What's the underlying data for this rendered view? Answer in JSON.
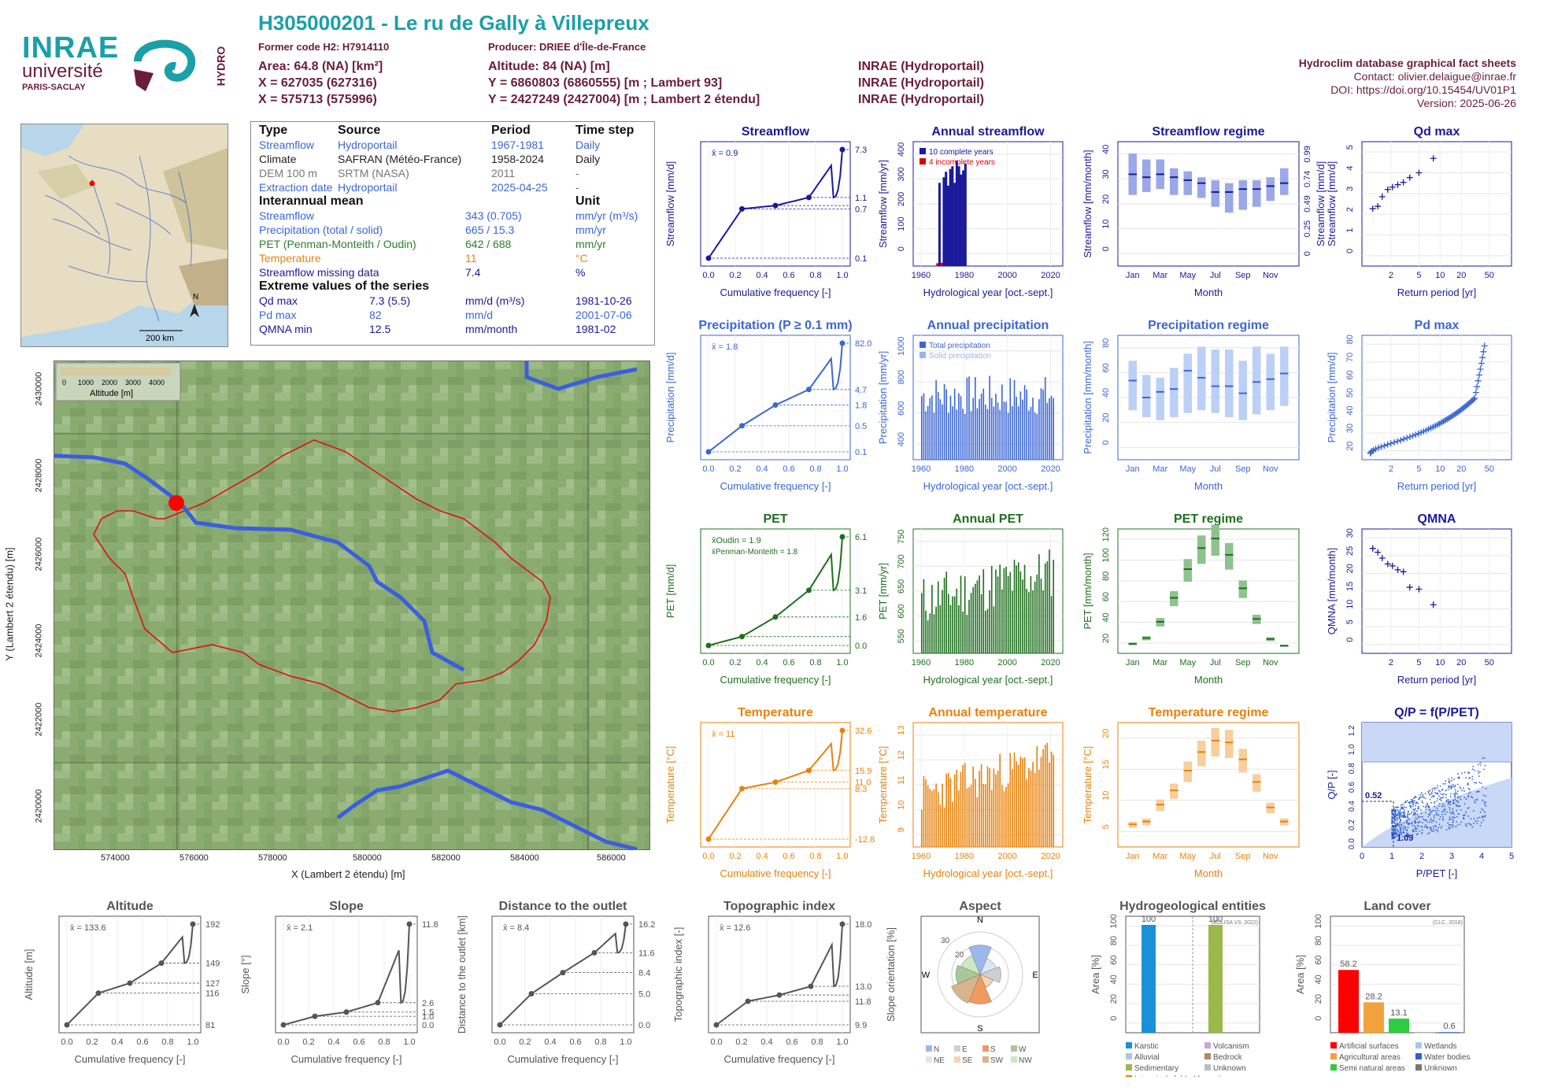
{
  "header": {
    "title": "H305000201 - Le ru de Gally à Villepreux",
    "former_code": "Former code H2: H7914110",
    "producer": "Producer: DRIEE d'Île-de-France",
    "area": "Area: 64.8 (NA) [km²]",
    "altitude": "Altitude: 84 (NA) [m]",
    "x93": "X = 627035 (627316)",
    "y93": "Y = 6860803 (6860555) [m ; Lambert 93]",
    "x2e": "X = 575713 (575996)",
    "y2e": "Y = 2427249 (2427004) [m ; Lambert 2 étendu]",
    "src1": "INRAE (Hydroportail)",
    "src2": "INRAE (Hydroportail)",
    "src3": "INRAE (Hydroportail)",
    "db": "Hydroclim database graphical fact sheets",
    "contact": "Contact: olivier.delaigue@inrae.fr",
    "doi": "DOI: https://doi.org/10.15454/UV01P1",
    "version": "Version: 2025-06-26"
  },
  "logos": {
    "inrae": "INRAE",
    "universite": "université",
    "paris_saclay": "PARIS-SACLAY",
    "hydro": "HYDRO"
  },
  "minimap": {
    "north": "N",
    "scale": "200 km"
  },
  "info_table": {
    "h_type": "Type",
    "h_source": "Source",
    "h_period": "Period",
    "h_step": "Time step",
    "rows": [
      {
        "type": "Streamflow",
        "source": "Hydroportail",
        "period": "1967-1981",
        "step": "Daily"
      },
      {
        "type": "Climate",
        "source": "SAFRAN (Météo-France)",
        "period": "1958-2024",
        "step": "Daily"
      },
      {
        "type": "DEM 100 m",
        "source": "SRTM (NASA)",
        "period": "2011",
        "step": "-"
      },
      {
        "type": "Extraction date",
        "source": "Hydroportail",
        "period": "2025-04-25",
        "step": "-"
      }
    ],
    "h_mean": "Interannual mean",
    "h_unit": "Unit",
    "means": [
      {
        "name": "Streamflow",
        "value": "343 (0.705)",
        "unit": "mm/yr (m³/s)"
      },
      {
        "name": "Precipitation (total / solid)",
        "value": "665 / 15.3",
        "unit": "mm/yr"
      },
      {
        "name": "PET (Penman-Monteith / Oudin)",
        "value": "642 / 688",
        "unit": "mm/yr"
      },
      {
        "name": "Temperature",
        "value": "11",
        "unit": "°C"
      },
      {
        "name": "Streamflow missing data",
        "value": "7.4",
        "unit": "%"
      }
    ],
    "h_extreme": "Extreme values of the series",
    "extremes": [
      {
        "name": "Qd max",
        "value": "7.3 (5.5)",
        "unit": "mm/d (m³/s)",
        "date": "1981-10-26"
      },
      {
        "name": "Pd max",
        "value": "82",
        "unit": "mm/d",
        "date": "2001-07-06"
      },
      {
        "name": "QMNA min",
        "value": "12.5",
        "unit": "mm/month",
        "date": "1981-02"
      }
    ]
  },
  "map": {
    "legend_title": "Altitude [m]",
    "legend_ticks": [
      "0",
      "1000",
      "2000",
      "3000",
      "4000"
    ],
    "xlabel": "X (Lambert 2 étendu) [m]",
    "ylabel": "Y (Lambert 2 étendu) [m]",
    "xticks": [
      "574000",
      "576000",
      "578000",
      "580000",
      "582000",
      "584000",
      "586000"
    ],
    "yticks": [
      "2430000",
      "2428000",
      "2426000",
      "2424000",
      "2422000",
      "2420000"
    ]
  },
  "chart_data": [
    {
      "id": "streamflow",
      "type": "line",
      "title": "Streamflow",
      "xlabel": "Cumulative frequency [-]",
      "ylabel": "Streamflow [mm/d]",
      "mean": "x̄ = 0.9",
      "x": [
        0,
        0.25,
        0.5,
        0.75,
        1
      ],
      "values": [
        0.1,
        0.7,
        0.8,
        1.1,
        7.3
      ],
      "right_labels": [
        "7.3",
        "1.1",
        "0.7",
        "0.1"
      ]
    },
    {
      "id": "annual_streamflow",
      "type": "bar",
      "title": "Annual streamflow",
      "xlabel": "Hydrological year [oct.-sept.]",
      "ylabel": "Streamflow [mm/yr]",
      "legend": [
        "10 complete years",
        "4 incomplete years"
      ],
      "x": [
        1967,
        1968,
        1969,
        1970,
        1971,
        1972,
        1973,
        1974,
        1975,
        1976,
        1977,
        1978,
        1979,
        1980
      ],
      "values": [
        10,
        300,
        12,
        320,
        340,
        290,
        350,
        360,
        300,
        380,
        360,
        330,
        345,
        370
      ],
      "xticks": [
        "1960",
        "1980",
        "2000",
        "2020"
      ],
      "yticks": [
        "0",
        "100",
        "200",
        "300",
        "400"
      ]
    },
    {
      "id": "streamflow_regime",
      "type": "bar",
      "title": "Streamflow regime",
      "xlabel": "Month",
      "ylabel": "Streamflow [mm/month]",
      "ylabel2": "Streamflow [mm/d]",
      "categories": [
        "Jan",
        "Feb",
        "Mar",
        "Apr",
        "May",
        "Jun",
        "Jul",
        "Aug",
        "Sep",
        "Oct",
        "Nov",
        "Dec"
      ],
      "q1": [
        24,
        25,
        26,
        24,
        24,
        23,
        20,
        18,
        19,
        20,
        22,
        24
      ],
      "median": [
        31,
        30,
        31,
        30,
        29,
        28,
        25,
        25,
        26,
        26,
        27,
        28
      ],
      "q3": [
        38,
        36,
        36,
        33,
        32,
        30,
        29,
        28,
        29,
        29,
        30,
        33
      ],
      "xticks": [
        "Jan",
        "Mar",
        "May",
        "Jul",
        "Sep",
        "Nov"
      ],
      "yticks": [
        "0",
        "10",
        "20",
        "30",
        "40"
      ],
      "yticks2": [
        "0",
        "0.25",
        "0.49",
        "0.74",
        "0.99"
      ]
    },
    {
      "id": "qd_max",
      "type": "scatter",
      "title": "Qd max",
      "xlabel": "Return period [yr]",
      "ylabel": "Streamflow [mm/d]",
      "x": [
        1.1,
        1.3,
        1.5,
        1.8,
        2.1,
        2.5,
        3,
        3.7,
        5,
        8
      ],
      "values": [
        2.4,
        2.5,
        2.9,
        3.2,
        3.3,
        3.4,
        3.5,
        3.7,
        3.9,
        4.5
      ],
      "xticks": [
        "2",
        "5",
        "10",
        "20",
        "50"
      ],
      "yticks": [
        "0",
        "1",
        "2",
        "3",
        "4",
        "5"
      ]
    },
    {
      "id": "precipitation",
      "type": "line",
      "title": "Precipitation (P ≥ 0.1 mm)",
      "xlabel": "Cumulative frequency [-]",
      "ylabel": "Precipitation [mm/d]",
      "mean": "x̄ = 1.8",
      "x": [
        0,
        0.25,
        0.5,
        0.75,
        1
      ],
      "values": [
        0.1,
        0.5,
        1.8,
        4.7,
        82
      ],
      "right_labels": [
        "82.0",
        "4.7",
        "1.8",
        "0.5",
        "0.1"
      ]
    },
    {
      "id": "annual_precipitation",
      "type": "bar",
      "title": "Annual precipitation",
      "xlabel": "Hydrological year [oct.-sept.]",
      "ylabel": "Precipitation [mm/yr]",
      "legend": [
        "Total precipitation",
        "Solid precipitation"
      ],
      "xticks": [
        "1960",
        "1980",
        "2000",
        "2020"
      ],
      "yticks": [
        "400",
        "600",
        "800",
        "1000"
      ]
    },
    {
      "id": "precipitation_regime",
      "type": "bar",
      "title": "Precipitation regime",
      "xlabel": "Month",
      "ylabel": "Precipitation [mm/month]",
      "categories": [
        "Jan",
        "Feb",
        "Mar",
        "Apr",
        "May",
        "Jun",
        "Jul",
        "Aug",
        "Sep",
        "Oct",
        "Nov",
        "Dec"
      ],
      "q1": [
        35,
        30,
        28,
        30,
        33,
        35,
        33,
        30,
        28,
        32,
        35,
        38
      ],
      "median": [
        56,
        44,
        48,
        50,
        63,
        58,
        52,
        52,
        47,
        55,
        57,
        61
      ],
      "q3": [
        70,
        60,
        58,
        65,
        75,
        80,
        78,
        78,
        70,
        80,
        75,
        80
      ],
      "xticks": [
        "Jan",
        "Mar",
        "May",
        "Jul",
        "Sep",
        "Nov"
      ],
      "yticks": [
        "0",
        "20",
        "40",
        "60",
        "80"
      ]
    },
    {
      "id": "pd_max",
      "type": "scatter",
      "title": "Pd max",
      "xlabel": "Return period [yr]",
      "ylabel": "Precipitation [mm/d]",
      "xticks": [
        "2",
        "5",
        "10",
        "20",
        "50"
      ],
      "yticks": [
        "20",
        "30",
        "40",
        "50",
        "60",
        "70",
        "80"
      ]
    },
    {
      "id": "pet",
      "type": "line",
      "title": "PET",
      "xlabel": "Cumulative frequency [-]",
      "ylabel": "PET [mm/d]",
      "mean": "x̄Oudin = 1.9",
      "mean2": "x̄Penman-Monteith = 1.8",
      "x": [
        0,
        0.25,
        0.5,
        0.75,
        1
      ],
      "values": [
        0,
        0.5,
        1.6,
        3.1,
        6.1
      ],
      "right_labels": [
        "6.1",
        "3.1",
        "1.6",
        "0.0"
      ]
    },
    {
      "id": "annual_pet",
      "type": "bar",
      "title": "Annual PET",
      "xlabel": "Hydrological year [oct.-sept.]",
      "ylabel": "PET [mm/yr]",
      "xticks": [
        "1960",
        "1980",
        "2000",
        "2020"
      ],
      "yticks": [
        "550",
        "600",
        "650",
        "700",
        "750"
      ]
    },
    {
      "id": "pet_regime",
      "type": "bar",
      "title": "PET regime",
      "xlabel": "Month",
      "ylabel": "PET [mm/month]",
      "categories": [
        "Jan",
        "Feb",
        "Mar",
        "Apr",
        "May",
        "Jun",
        "Jul",
        "Aug",
        "Sep",
        "Oct",
        "Nov",
        "Dec"
      ],
      "median": [
        10,
        16,
        33,
        58,
        88,
        110,
        120,
        103,
        68,
        36,
        15,
        8
      ],
      "xticks": [
        "Jan",
        "Mar",
        "May",
        "Jul",
        "Sep",
        "Nov"
      ],
      "yticks": [
        "20",
        "40",
        "60",
        "80",
        "100",
        "120"
      ]
    },
    {
      "id": "qmna",
      "type": "scatter",
      "title": "QMNA",
      "xlabel": "Return period [yr]",
      "ylabel": "QMNA [mm/month]",
      "x": [
        1.1,
        1.3,
        1.5,
        1.8,
        2.1,
        2.5,
        3,
        3.7,
        5,
        8
      ],
      "values": [
        27,
        26,
        24.5,
        23,
        22.5,
        21.5,
        21,
        17,
        16.5,
        12.5
      ],
      "xticks": [
        "2",
        "5",
        "10",
        "20",
        "50"
      ],
      "yticks": [
        "0",
        "5",
        "10",
        "15",
        "20",
        "25",
        "30"
      ]
    },
    {
      "id": "temperature",
      "type": "line",
      "title": "Temperature",
      "xlabel": "Cumulative frequency [-]",
      "ylabel": "Temperature [°C]",
      "mean": "x̄ = 11",
      "x": [
        0,
        0.25,
        0.5,
        0.75,
        1
      ],
      "values": [
        -12.8,
        8.3,
        11,
        15.9,
        32.6
      ],
      "right_labels": [
        "32.6",
        "15.9",
        "11.0",
        "8.3",
        "-12.8"
      ]
    },
    {
      "id": "annual_temperature",
      "type": "bar",
      "title": "Annual temperature",
      "xlabel": "Hydrological year [oct.-sept.]",
      "ylabel": "Temperature [°C]",
      "xticks": [
        "1960",
        "1980",
        "2000",
        "2020"
      ],
      "yticks": [
        "9",
        "10",
        "11",
        "12",
        "13"
      ]
    },
    {
      "id": "temperature_regime",
      "type": "bar",
      "title": "Temperature regime",
      "xlabel": "Month",
      "ylabel": "Temperature [°C]",
      "categories": [
        "Jan",
        "Feb",
        "Mar",
        "Apr",
        "May",
        "Jun",
        "Jul",
        "Aug",
        "Sep",
        "Oct",
        "Nov",
        "Dec"
      ],
      "median": [
        4,
        4.5,
        7.5,
        10,
        13.5,
        16.8,
        18.8,
        18.5,
        15.5,
        11.5,
        7,
        4.5
      ],
      "xticks": [
        "Jan",
        "Mar",
        "May",
        "Jul",
        "Sep",
        "Nov"
      ],
      "yticks": [
        "5",
        "10",
        "15",
        "20"
      ]
    },
    {
      "id": "qp",
      "type": "scatter",
      "title": "Q/P = f(P/PET)",
      "xlabel": "P/PET [-]",
      "ylabel": "Q/P [-]",
      "label1": "0.52",
      "label2": "1.09",
      "xticks": [
        "0",
        "1",
        "2",
        "3",
        "4",
        "5"
      ],
      "yticks": [
        "0.0",
        "0.2",
        "0.4",
        "0.6",
        "0.8",
        "1.0",
        "1.2"
      ]
    },
    {
      "id": "altitude",
      "type": "line",
      "title": "Altitude",
      "xlabel": "Cumulative frequency [-]",
      "ylabel": "Altitude [m]",
      "mean": "x̄ = 133.6",
      "x": [
        0,
        0.25,
        0.5,
        0.75,
        1
      ],
      "values": [
        81,
        116,
        127,
        149,
        192
      ],
      "right_labels": [
        "192",
        "149",
        "127",
        "116",
        "81"
      ]
    },
    {
      "id": "slope",
      "type": "line",
      "title": "Slope",
      "xlabel": "Cumulative frequency [-]",
      "ylabel": "Slope [°]",
      "mean": "x̄ = 2.1",
      "x": [
        0,
        0.25,
        0.5,
        0.75,
        1
      ],
      "values": [
        0,
        1,
        1.5,
        2.6,
        11.8
      ],
      "right_labels": [
        "11.8",
        "2.6",
        "1.5",
        "1.0",
        "0.0"
      ]
    },
    {
      "id": "distance",
      "type": "line",
      "title": "Distance to the outlet",
      "xlabel": "Cumulative frequency [-]",
      "ylabel": "Distance to the outlet [km]",
      "mean": "x̄ = 8.4",
      "x": [
        0,
        0.25,
        0.5,
        0.75,
        1
      ],
      "values": [
        0,
        5,
        8.4,
        11.6,
        16.2
      ],
      "right_labels": [
        "16.2",
        "11.6",
        "8.4",
        "5.0",
        "0.0"
      ]
    },
    {
      "id": "topo",
      "type": "line",
      "title": "Topographic index",
      "xlabel": "Cumulative frequency [-]",
      "ylabel": "Topographic index [-]",
      "mean": "x̄ = 12.6",
      "x": [
        0,
        0.25,
        0.5,
        0.75,
        1
      ],
      "values": [
        9.9,
        11.8,
        12.3,
        13,
        18
      ],
      "right_labels": [
        "18.0",
        "13.0",
        "11.8",
        "9.9"
      ]
    },
    {
      "id": "aspect",
      "type": "pie",
      "title": "Aspect",
      "ylabel": "Slope orientation [%]",
      "categories": [
        "N",
        "NE",
        "E",
        "SE",
        "S",
        "SW",
        "W",
        "NW"
      ],
      "values": [
        17,
        10,
        12,
        8,
        17,
        18,
        14,
        12
      ],
      "legend": [
        "N",
        "E",
        "S",
        "W",
        "NE",
        "SE",
        "SW",
        "NW"
      ],
      "compass": [
        "N",
        "E",
        "S",
        "W"
      ],
      "rings": [
        "10",
        "20",
        "30"
      ]
    },
    {
      "id": "hydrogeology",
      "type": "bar",
      "title": "Hydrogeological entities",
      "ylabel": "Area [%]",
      "source": "(BDLISA V3, 2022)",
      "categories": [
        "Karstic",
        "Sedimentary"
      ],
      "values": [
        100,
        100
      ],
      "legend": [
        "Karstic",
        "Alluvial",
        "Sedimentary",
        "Intensively folded formation",
        "Volcanism",
        "Bedrock",
        "Unknown"
      ],
      "yticks": [
        "0",
        "20",
        "40",
        "60",
        "80",
        "100"
      ]
    },
    {
      "id": "landcover",
      "type": "bar",
      "title": "Land cover",
      "ylabel": "Area [%]",
      "source": "(CLC, 2018)",
      "categories": [
        "Artificial surfaces",
        "Agricultural areas",
        "Semi natural areas",
        "Wetlands",
        "Water bodies"
      ],
      "values": [
        58.2,
        28.2,
        13.1,
        0,
        0.6
      ],
      "labels": [
        "58.2",
        "28.2",
        "13.1",
        "0.6"
      ],
      "legend": [
        "Artificial surfaces",
        "Agricultural areas",
        "Semi natural areas",
        "Wetlands",
        "Water bodies",
        "Unknown"
      ],
      "yticks": [
        "0",
        "20",
        "40",
        "60",
        "80",
        "100"
      ]
    }
  ],
  "colors": {
    "streamflow": "#1a1a9a",
    "precipitation": "#3b66d6",
    "pet": "#1f6f1f",
    "temperature": "#e8820c",
    "topo": "#555555",
    "qp": "#2f5fd0"
  }
}
